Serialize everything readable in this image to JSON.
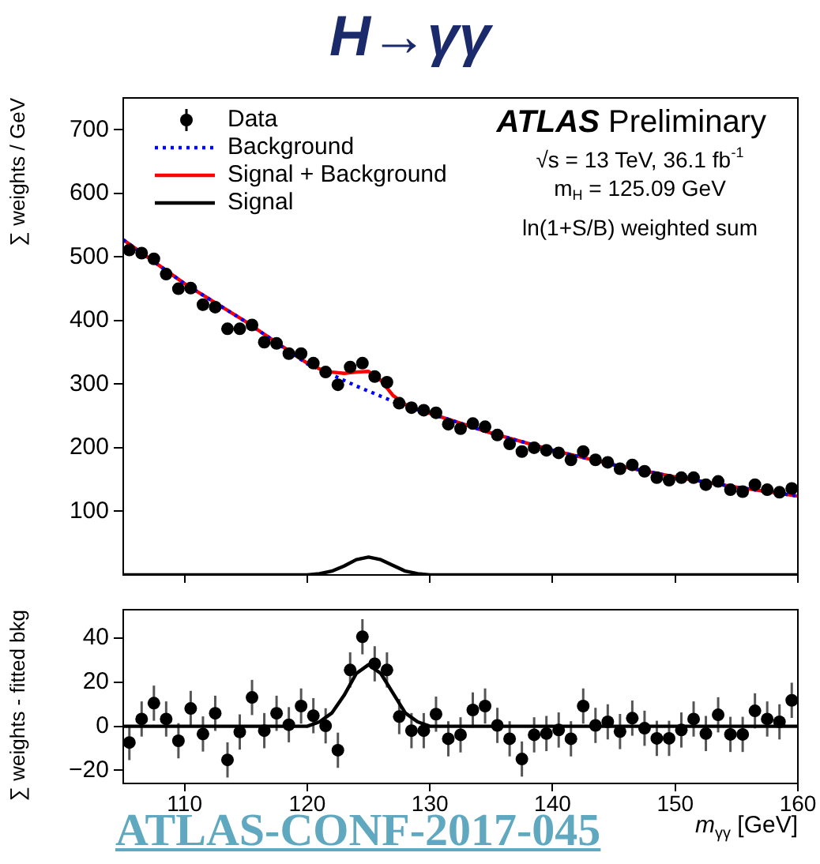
{
  "chart_data": [
    {
      "type": "scatter",
      "title": "H→γγ",
      "ylabel": "∑ weights / GeV",
      "xlim": [
        105,
        160
      ],
      "xticks": [
        110,
        120,
        130,
        140,
        150,
        160
      ],
      "ylim": [
        0,
        750
      ],
      "yticks": [
        100,
        200,
        300,
        400,
        500,
        600,
        700
      ],
      "tick_labels": "y",
      "legend": "top left",
      "grid": false,
      "annotations": [
        "ATLAS Preliminary",
        "√s = 13 TeV, 36.1 fb$^{-1}$",
        "m$_{H}$ = 125.09 GeV",
        "ln(1+S/B) weighted sum"
      ],
      "series": [
        {
          "name": "Data",
          "type": "scatter",
          "marker": "circle",
          "color": "#000000",
          "x": [
            105.5,
            106.5,
            107.5,
            108.5,
            109.5,
            110.5,
            111.5,
            112.5,
            113.5,
            114.5,
            115.5,
            116.5,
            117.5,
            118.5,
            119.5,
            120.5,
            121.5,
            122.5,
            123.5,
            124.5,
            125.5,
            126.5,
            127.5,
            128.5,
            129.5,
            130.5,
            131.5,
            132.5,
            133.5,
            134.5,
            135.5,
            136.5,
            137.5,
            138.5,
            139.5,
            140.5,
            141.5,
            142.5,
            143.5,
            144.5,
            145.5,
            146.5,
            147.5,
            148.5,
            149.5,
            150.5,
            151.5,
            152.5,
            153.5,
            154.5,
            155.5,
            156.5,
            157.5,
            158.5,
            159.5
          ],
          "values": [
            511,
            506,
            497,
            473,
            450,
            451,
            425,
            421,
            387,
            387,
            393,
            366,
            364,
            348,
            348,
            333,
            319,
            299,
            327,
            333,
            312,
            303,
            270,
            263,
            259,
            255,
            237,
            230,
            238,
            233,
            220,
            206,
            194,
            200,
            196,
            192,
            181,
            194,
            181,
            177,
            167,
            173,
            163,
            153,
            149,
            153,
            153,
            142,
            147,
            134,
            131,
            142,
            134,
            130,
            136
          ]
        },
        {
          "name": "Background",
          "type": "line",
          "line_style": "dotted",
          "color": "#0000ff",
          "x": [
            105,
            110,
            115,
            120,
            122,
            124,
            126,
            128,
            130,
            135,
            140,
            145,
            150,
            155,
            160
          ],
          "values": [
            527,
            458,
            398,
            332,
            315,
            297,
            281,
            265,
            254,
            223,
            196,
            173,
            154,
            138,
            124
          ]
        },
        {
          "name": "Signal + Background",
          "type": "line",
          "line_style": "solid",
          "color": "#ff0000",
          "x": [
            105,
            110,
            115,
            120,
            121,
            122,
            123,
            124,
            125,
            126,
            127,
            128,
            129,
            130,
            135,
            140,
            145,
            150,
            155,
            160
          ],
          "values": [
            527,
            458,
            398,
            333,
            324,
            319,
            317,
            319,
            320,
            306,
            282,
            268,
            260,
            254,
            223,
            196,
            173,
            154,
            138,
            124
          ]
        },
        {
          "name": "Signal",
          "type": "line",
          "line_style": "solid",
          "color": "#000000",
          "x": [
            105,
            118,
            120,
            121,
            122,
            123,
            124,
            125,
            126,
            127,
            128,
            129,
            130,
            132,
            160
          ],
          "values": [
            0,
            0,
            0,
            2,
            6,
            14,
            24,
            28,
            24,
            15,
            6,
            2,
            0,
            0,
            0
          ]
        }
      ]
    },
    {
      "type": "scatter",
      "xlabel": "m$_{γγ}$ [GeV]",
      "ylabel": "∑ weights - fitted bkg",
      "xlim": [
        105,
        160
      ],
      "xticks": [
        110,
        120,
        130,
        140,
        150,
        160
      ],
      "ylim": [
        -26,
        53
      ],
      "yticks": [
        -20,
        0,
        20,
        40
      ],
      "grid": false,
      "annotations": [
        "ATLAS-CONF-2017-045"
      ],
      "series": [
        {
          "type": "scatter",
          "marker": "circle",
          "color": "#000000",
          "x": [
            105.5,
            106.5,
            107.5,
            108.5,
            109.5,
            110.5,
            111.5,
            112.5,
            113.5,
            114.5,
            115.5,
            116.5,
            117.5,
            118.5,
            119.5,
            120.5,
            121.5,
            122.5,
            123.5,
            124.5,
            125.5,
            126.5,
            127.5,
            128.5,
            129.5,
            130.5,
            131.5,
            132.5,
            133.5,
            134.5,
            135.5,
            136.5,
            137.5,
            138.5,
            139.5,
            140.5,
            141.5,
            142.5,
            143.5,
            144.5,
            145.5,
            146.5,
            147.5,
            148.5,
            149.5,
            150.5,
            151.5,
            152.5,
            153.5,
            154.5,
            155.5,
            156.5,
            157.5,
            158.5,
            159.5
          ],
          "values": [
            -7.4,
            3.3,
            10.5,
            3.3,
            -6.6,
            8.1,
            -3.5,
            5.9,
            -15.3,
            -2.6,
            13.1,
            -2,
            5.9,
            0.7,
            9.2,
            4.8,
            0.2,
            -10.9,
            25.6,
            40.7,
            28.4,
            25.6,
            4.4,
            -2,
            -2,
            5.5,
            -5.7,
            -3.9,
            7.4,
            9.2,
            0.4,
            -5.7,
            -14.9,
            -3.9,
            -3.3,
            -1.7,
            -5.7,
            9.2,
            0.4,
            2,
            -2.4,
            3.7,
            -0.9,
            -5.5,
            -5.5,
            -1.7,
            3.3,
            -3.3,
            5.2,
            -3.7,
            -3.7,
            7,
            3.3,
            2,
            11.8
          ],
          "errors": [
            8,
            8,
            8,
            8,
            8,
            8,
            8,
            8,
            8,
            8,
            8,
            8,
            8,
            8,
            8,
            8,
            8,
            8,
            8,
            8,
            8,
            8,
            8,
            8,
            8,
            8,
            8,
            8,
            8,
            8,
            8,
            8,
            8,
            8,
            8,
            8,
            8,
            8,
            8,
            8,
            8,
            8,
            8,
            8,
            8,
            8,
            8,
            8,
            8,
            8,
            8,
            8,
            8,
            8,
            8
          ]
        },
        {
          "type": "line",
          "line_style": "solid",
          "color": "#000000",
          "x": [
            105,
            118,
            120,
            121,
            122,
            123,
            124,
            125,
            126,
            127,
            128,
            129,
            130,
            132,
            160
          ],
          "values": [
            0,
            0,
            0,
            2,
            6,
            14,
            24,
            28,
            24,
            15,
            6,
            2,
            0,
            0,
            0
          ]
        }
      ]
    }
  ]
}
